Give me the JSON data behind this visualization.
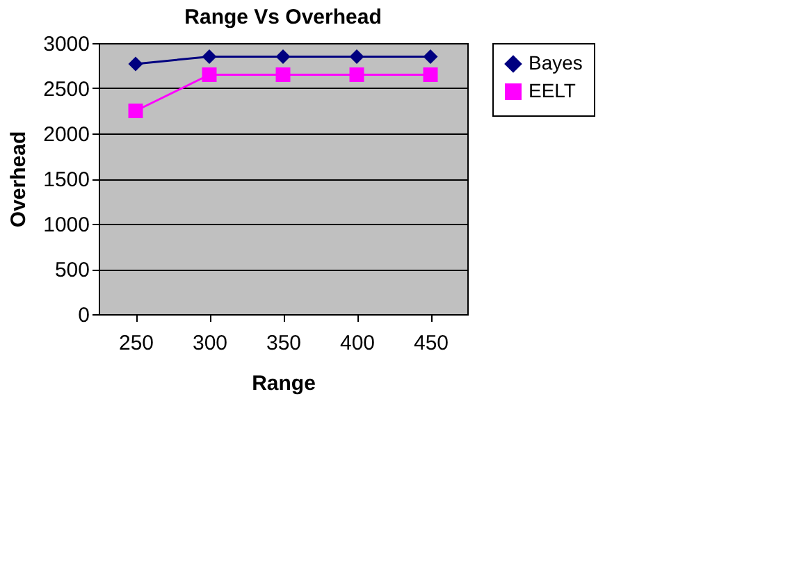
{
  "chart_data": {
    "type": "line",
    "title": "Range Vs Overhead",
    "xlabel": "Range",
    "ylabel": "Overhead",
    "categories": [
      "250",
      "300",
      "350",
      "400",
      "450"
    ],
    "series": [
      {
        "name": "Bayes",
        "color": "#000080",
        "marker": "diamond",
        "values": [
          2770,
          2850,
          2850,
          2850,
          2850
        ]
      },
      {
        "name": "EELT",
        "color": "#ff00ff",
        "marker": "square",
        "values": [
          2250,
          2650,
          2650,
          2650,
          2650
        ]
      }
    ],
    "ylim": [
      0,
      3000
    ],
    "yticks": [
      0,
      500,
      1000,
      1500,
      2000,
      2500,
      3000
    ],
    "grid": "y",
    "legend": "right",
    "line_style": "solid"
  }
}
